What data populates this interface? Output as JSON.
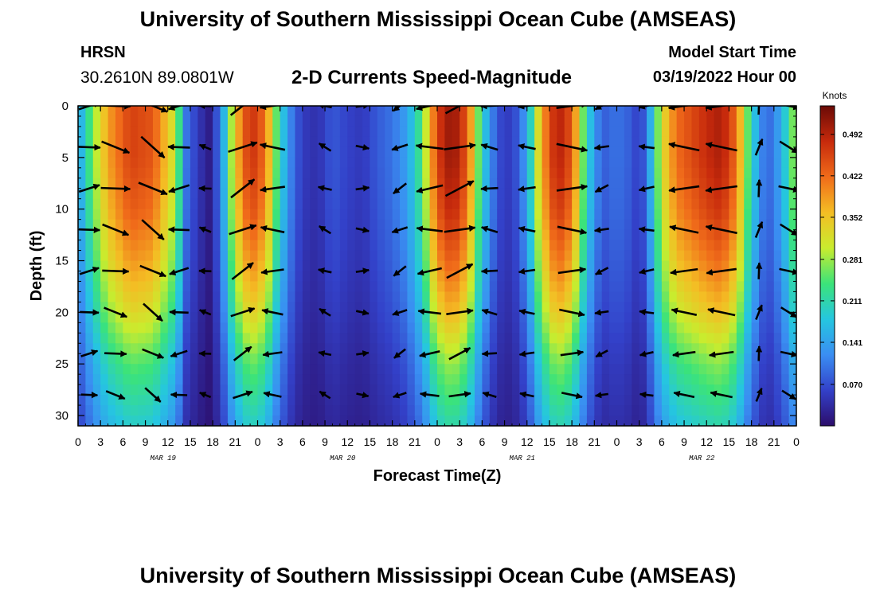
{
  "header": {
    "title": "University of Southern Mississippi Ocean Cube (AMSEAS)",
    "station": "HRSN",
    "coordinates": "30.2610N  89.0801W",
    "plot_title": "2-D Currents Speed-Magnitude",
    "model_start_label": "Model Start Time",
    "model_start_value": "03/19/2022 Hour 00"
  },
  "footer": {
    "title": "University of Southern Mississippi Ocean Cube (AMSEAS)"
  },
  "chart_data": {
    "type": "heatmap",
    "title": "2-D Currents Speed-Magnitude",
    "xlabel": "Forecast Time(Z)",
    "ylabel": "Depth (ft)",
    "x_unit": "forecast hours from 03/19/2022 00Z",
    "xlim": [
      0,
      96
    ],
    "ylim": [
      0,
      31
    ],
    "y_inverted": true,
    "x_tick_values": [
      0,
      3,
      6,
      9,
      12,
      15,
      18,
      21,
      24,
      27,
      30,
      33,
      36,
      39,
      42,
      45,
      48,
      51,
      54,
      57,
      60,
      63,
      66,
      69,
      72,
      75,
      78,
      81,
      84,
      87,
      90,
      93,
      96
    ],
    "x_tick_labels": [
      "0",
      "3",
      "6",
      "9",
      "12",
      "15",
      "18",
      "21",
      "0",
      "3",
      "6",
      "9",
      "12",
      "15",
      "18",
      "21",
      "0",
      "3",
      "6",
      "9",
      "12",
      "15",
      "18",
      "21",
      "0",
      "3",
      "6",
      "9",
      "12",
      "15",
      "18",
      "21",
      "0"
    ],
    "date_labels": [
      {
        "hour": 12,
        "label": "MAR 19"
      },
      {
        "hour": 36,
        "label": "MAR 20"
      },
      {
        "hour": 60,
        "label": "MAR 21"
      },
      {
        "hour": 84,
        "label": "MAR 22"
      }
    ],
    "y_tick_values": [
      0,
      5,
      10,
      15,
      20,
      25,
      30
    ],
    "y_tick_labels": [
      "0",
      "5",
      "10",
      "15",
      "20",
      "25",
      "30"
    ],
    "colorbar": {
      "label": "Knots",
      "vmin": 0.0,
      "vmax": 0.54,
      "tick_values": [
        0.07,
        0.141,
        0.211,
        0.281,
        0.352,
        0.422,
        0.492
      ],
      "tick_labels": [
        "0.070",
        "0.141",
        "0.211",
        "0.281",
        "0.352",
        "0.422",
        "0.492"
      ],
      "colors": [
        "#2c0d6b",
        "#3341c9",
        "#3a8ef2",
        "#25c6e0",
        "#3be37a",
        "#c9ec2e",
        "#f4bd24",
        "#f06b1a",
        "#c72a0c",
        "#6a0a06"
      ]
    },
    "speed_hour_profile": [
      {
        "t": 0,
        "v": 0.13
      },
      {
        "t": 2,
        "v": 0.27
      },
      {
        "t": 4,
        "v": 0.38
      },
      {
        "t": 7,
        "v": 0.46
      },
      {
        "t": 10,
        "v": 0.44
      },
      {
        "t": 13,
        "v": 0.3
      },
      {
        "t": 14.5,
        "v": 0.1
      },
      {
        "t": 16,
        "v": 0.05
      },
      {
        "t": 17.5,
        "v": 0.02
      },
      {
        "t": 19,
        "v": 0.1
      },
      {
        "t": 21,
        "v": 0.35
      },
      {
        "t": 23,
        "v": 0.48
      },
      {
        "t": 25,
        "v": 0.42
      },
      {
        "t": 27,
        "v": 0.2
      },
      {
        "t": 29,
        "v": 0.08
      },
      {
        "t": 30.5,
        "v": 0.05
      },
      {
        "t": 32,
        "v": 0.04
      },
      {
        "t": 34,
        "v": 0.08
      },
      {
        "t": 36,
        "v": 0.06
      },
      {
        "t": 38,
        "v": 0.05
      },
      {
        "t": 40,
        "v": 0.08
      },
      {
        "t": 42,
        "v": 0.1
      },
      {
        "t": 44,
        "v": 0.14
      },
      {
        "t": 46,
        "v": 0.25
      },
      {
        "t": 48,
        "v": 0.46
      },
      {
        "t": 50,
        "v": 0.52
      },
      {
        "t": 52,
        "v": 0.44
      },
      {
        "t": 54,
        "v": 0.2
      },
      {
        "t": 56,
        "v": 0.07
      },
      {
        "t": 58,
        "v": 0.05
      },
      {
        "t": 60,
        "v": 0.14
      },
      {
        "t": 62,
        "v": 0.38
      },
      {
        "t": 64,
        "v": 0.5
      },
      {
        "t": 66,
        "v": 0.44
      },
      {
        "t": 68,
        "v": 0.2
      },
      {
        "t": 70,
        "v": 0.08
      },
      {
        "t": 72,
        "v": 0.1
      },
      {
        "t": 74,
        "v": 0.08
      },
      {
        "t": 75,
        "v": 0.05
      },
      {
        "t": 76,
        "v": 0.1
      },
      {
        "t": 78,
        "v": 0.32
      },
      {
        "t": 80,
        "v": 0.42
      },
      {
        "t": 82,
        "v": 0.45
      },
      {
        "t": 84,
        "v": 0.48
      },
      {
        "t": 86,
        "v": 0.5
      },
      {
        "t": 88,
        "v": 0.42
      },
      {
        "t": 90,
        "v": 0.2
      },
      {
        "t": 92,
        "v": 0.08
      },
      {
        "t": 94,
        "v": 0.15
      },
      {
        "t": 96,
        "v": 0.3
      }
    ],
    "speed_depth_weights": [
      {
        "d": 0,
        "w": 1.0
      },
      {
        "d": 5,
        "w": 1.0
      },
      {
        "d": 10,
        "w": 0.95
      },
      {
        "d": 15,
        "w": 0.85
      },
      {
        "d": 20,
        "w": 0.72
      },
      {
        "d": 25,
        "w": 0.55
      },
      {
        "d": 31,
        "w": 0.42
      }
    ],
    "vector_hours": [
      1.5,
      5,
      10,
      13.5,
      17,
      22,
      26,
      33,
      38,
      43,
      47,
      51,
      55,
      60,
      66,
      70,
      76,
      81,
      86,
      91,
      95
    ],
    "vector_depths": [
      0,
      4,
      8,
      12,
      16,
      20,
      24,
      28
    ],
    "vector_direction_deg": [
      -10,
      10,
      30,
      170,
      190,
      -30,
      180,
      200,
      0,
      150,
      175,
      -20,
      185,
      180,
      0,
      160,
      175,
      180,
      180,
      -80,
      20
    ]
  }
}
